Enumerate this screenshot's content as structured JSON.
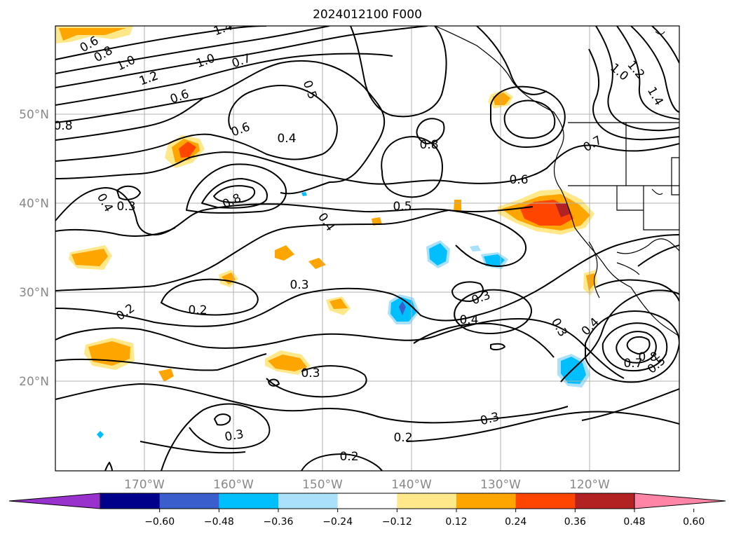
{
  "title": "2024012100 F000",
  "map": {
    "lon_range": [
      "180°W",
      "110°W"
    ],
    "lat_range": [
      "10°N",
      "60°N"
    ],
    "lon_ticks": [
      "170°W",
      "160°W",
      "150°W",
      "140°W",
      "130°W",
      "120°W"
    ],
    "lat_ticks": [
      "50°N",
      "40°N",
      "30°N",
      "20°N"
    ],
    "grid": true
  },
  "contour_labels": [
    "0.6",
    "0.8",
    "1.0",
    "1.2",
    "1.4",
    "0.7",
    "0.5",
    "0.6",
    "0.4",
    "0.8",
    "0.4",
    "0.5",
    "0.3",
    "0.8",
    "0.6",
    "0.3",
    "0.2",
    "0.3",
    "0.4",
    "0.2",
    "0.3",
    "0.3",
    "0.4",
    "0.3",
    "0.4",
    "0.8",
    "0.7",
    "0.5",
    "0.3",
    "0.2",
    "0.2",
    "1.0",
    "1.2",
    "1.4",
    "0.7",
    "0.8",
    "0.6",
    "1.2",
    "1.0"
  ],
  "colorbar": {
    "ticks": [
      "−0.60",
      "−0.48",
      "−0.36",
      "−0.24",
      "−0.12",
      "0.12",
      "0.24",
      "0.36",
      "0.48",
      "0.60"
    ],
    "colors": [
      "#9932cc",
      "#00008b",
      "#3a5fcd",
      "#00bfff",
      "#abe0fb",
      "#ffffff",
      "#ffe88a",
      "#ffa500",
      "#ff4500",
      "#b22222",
      "#ff85a6"
    ]
  },
  "colors": {
    "contour": "#000000",
    "grid": "#b0b0b0",
    "tick_text": "#888888"
  }
}
